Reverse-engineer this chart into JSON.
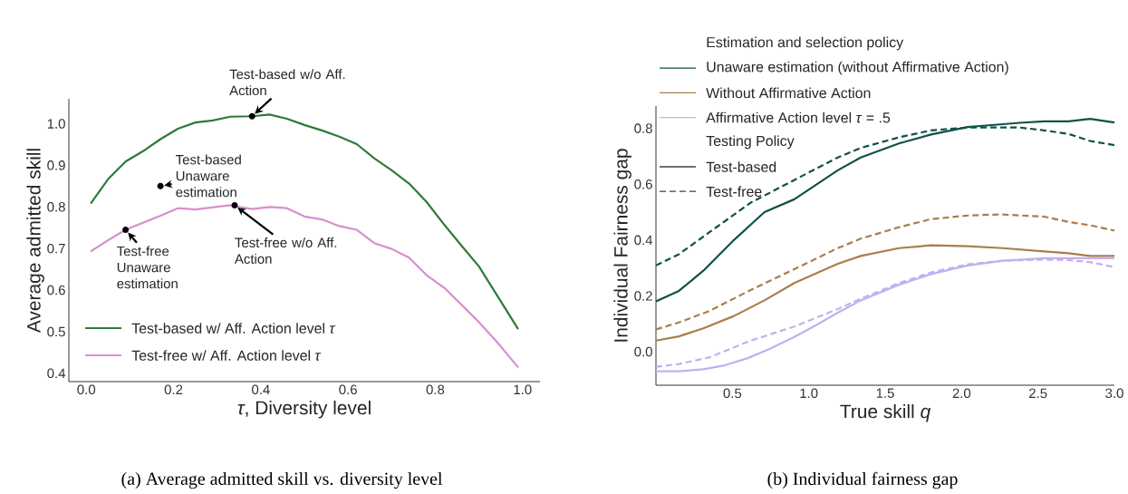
{
  "chart_data": [
    {
      "type": "line",
      "title": "(a) Average admitted skill vs. diversity level",
      "xlabel": "*τ*, Diversity level",
      "ylabel": "Average admitted skill",
      "xlim": [
        -0.04,
        1.04
      ],
      "ylim": [
        0.38,
        1.06
      ],
      "xticks": [
        {
          "value": 0,
          "label": "0.0"
        },
        {
          "value": 0.2,
          "label": "0.2"
        },
        {
          "value": 0.4,
          "label": "0.4"
        },
        {
          "value": 0.6,
          "label": "0.6"
        },
        {
          "value": 0.8,
          "label": "0.8"
        },
        {
          "value": 1,
          "label": "1.0"
        }
      ],
      "yticks": [
        {
          "value": 0.4,
          "label": "0.4"
        },
        {
          "value": 0.5,
          "label": "0.5"
        },
        {
          "value": 0.6,
          "label": "0.6"
        },
        {
          "value": 0.7,
          "label": "0.7"
        },
        {
          "value": 0.8,
          "label": "0.8"
        },
        {
          "value": 0.9,
          "label": "0.9"
        },
        {
          "value": 1,
          "label": "1.0"
        }
      ],
      "legend": "bottom left",
      "x": [
        0.01,
        0.05,
        0.09,
        0.13,
        0.17,
        0.21,
        0.25,
        0.29,
        0.33,
        0.38,
        0.42,
        0.46,
        0.5,
        0.54,
        0.58,
        0.62,
        0.66,
        0.7,
        0.74,
        0.78,
        0.82,
        0.86,
        0.9,
        0.94,
        0.99
      ],
      "series": [
        {
          "name": "Test-based w/ Aff. Action level *τ*",
          "color": "#2d7a3b",
          "values": [
            0.808,
            0.867,
            0.909,
            0.934,
            0.963,
            0.988,
            1.003,
            1.008,
            1.017,
            1.018,
            1.022,
            1.012,
            0.997,
            0.984,
            0.969,
            0.951,
            0.917,
            0.888,
            0.856,
            0.812,
            0.758,
            0.707,
            0.657,
            0.59,
            0.506
          ]
        },
        {
          "name": "Test-free w/ Aff. Action level *τ*",
          "color": "#d88fcf",
          "values": [
            0.693,
            0.72,
            0.745,
            0.762,
            0.779,
            0.797,
            0.794,
            0.799,
            0.804,
            0.795,
            0.8,
            0.797,
            0.777,
            0.77,
            0.754,
            0.745,
            0.713,
            0.699,
            0.678,
            0.636,
            0.606,
            0.565,
            0.523,
            0.477,
            0.414
          ]
        }
      ],
      "annotations": [
        {
          "text": "Test-based Unaware estimation",
          "x": 0.17,
          "y": 0.85
        },
        {
          "text": "Test-based w/o Aff. Action",
          "x": 0.38,
          "y": 1.018
        },
        {
          "text": "Test-free Unaware estimation",
          "x": 0.09,
          "y": 0.745
        },
        {
          "text": "Test-free w/o Aff. Action",
          "x": 0.34,
          "y": 0.804
        }
      ]
    },
    {
      "type": "line",
      "title": "(b) Individual fairness gap",
      "xlabel": "True skill *q*",
      "ylabel": "Individual Fairness gap",
      "xlim": [
        0,
        3
      ],
      "ylim": [
        -0.12,
        0.88
      ],
      "xticks": [
        {
          "value": 0.5,
          "label": "0.5"
        },
        {
          "value": 1,
          "label": "1.0"
        },
        {
          "value": 1.5,
          "label": "1.5"
        },
        {
          "value": 2,
          "label": "2.0"
        },
        {
          "value": 2.5,
          "label": "2.5"
        },
        {
          "value": 3,
          "label": "3.0"
        }
      ],
      "yticks": [
        {
          "value": 0,
          "label": "0.0"
        },
        {
          "value": 0.2,
          "label": "0.2"
        },
        {
          "value": 0.4,
          "label": "0.4"
        },
        {
          "value": 0.6,
          "label": "0.6"
        },
        {
          "value": 0.8,
          "label": "0.8"
        }
      ],
      "legend": "top left",
      "legend_title": "Estimation and selection policy",
      "series": [
        {
          "name": "Unaware estimation (without Affirmative Action)",
          "color": "#0f5148",
          "line_style": "solid",
          "x": [
            0,
            0.15,
            0.31,
            0.51,
            0.71,
            0.905,
            1.19,
            1.34,
            1.59,
            1.8,
            2.04,
            2.18,
            2.38,
            2.54,
            2.7,
            2.84,
            3.0
          ],
          "values": [
            0.18,
            0.218,
            0.29,
            0.4,
            0.5,
            0.546,
            0.65,
            0.696,
            0.746,
            0.778,
            0.805,
            0.811,
            0.82,
            0.825,
            0.825,
            0.834,
            0.821
          ]
        },
        {
          "name": "Without Affirmative Action",
          "color": "#a97e4c",
          "line_style": "solid",
          "x": [
            0,
            0.15,
            0.31,
            0.51,
            0.71,
            0.905,
            1.19,
            1.34,
            1.59,
            1.8,
            2.04,
            2.27,
            2.54,
            2.7,
            2.84,
            3.0
          ],
          "values": [
            0.04,
            0.055,
            0.084,
            0.128,
            0.184,
            0.246,
            0.315,
            0.343,
            0.371,
            0.381,
            0.378,
            0.371,
            0.359,
            0.353,
            0.343,
            0.343
          ]
        },
        {
          "name": "Affirmative Action level *τ* = .5",
          "color": "#c3b0ee",
          "line_style": "solid",
          "x": [
            0,
            0.15,
            0.31,
            0.44,
            0.6,
            0.74,
            0.905,
            1.05,
            1.19,
            1.34,
            1.59,
            1.8,
            2.04,
            2.27,
            2.54,
            2.84,
            3.0
          ],
          "values": [
            -0.07,
            -0.07,
            -0.063,
            -0.05,
            -0.023,
            0.009,
            0.053,
            0.096,
            0.14,
            0.184,
            0.24,
            0.278,
            0.309,
            0.326,
            0.335,
            0.335,
            0.335
          ]
        },
        {
          "color": "#0f5148",
          "line_style": "dashed",
          "x": [
            0,
            0.15,
            0.35,
            0.62,
            0.905,
            1.19,
            1.34,
            1.59,
            1.8,
            2.04,
            2.38,
            2.54,
            2.7,
            2.84,
            3.0
          ],
          "values": [
            0.309,
            0.349,
            0.428,
            0.534,
            0.615,
            0.696,
            0.73,
            0.768,
            0.793,
            0.803,
            0.803,
            0.793,
            0.78,
            0.755,
            0.74
          ]
        },
        {
          "color": "#a97e4c",
          "line_style": "dashed",
          "x": [
            0,
            0.15,
            0.35,
            0.62,
            0.905,
            1.19,
            1.34,
            1.59,
            1.8,
            2.04,
            2.25,
            2.54,
            2.7,
            2.84,
            3.0
          ],
          "values": [
            0.08,
            0.105,
            0.146,
            0.221,
            0.296,
            0.371,
            0.405,
            0.446,
            0.475,
            0.488,
            0.492,
            0.484,
            0.465,
            0.453,
            0.434
          ]
        },
        {
          "color": "#c3b0ee",
          "line_style": "dashed",
          "x": [
            0,
            0.15,
            0.35,
            0.62,
            0.905,
            1.19,
            1.34,
            1.59,
            1.8,
            2.04,
            2.27,
            2.54,
            2.7,
            2.84,
            3.0
          ],
          "values": [
            -0.054,
            -0.044,
            -0.02,
            0.04,
            0.09,
            0.153,
            0.19,
            0.246,
            0.284,
            0.313,
            0.326,
            0.33,
            0.328,
            0.321,
            0.303
          ]
        }
      ],
      "annotations": [
        "Testing Policy",
        "Test-based",
        "Test-free"
      ]
    }
  ]
}
